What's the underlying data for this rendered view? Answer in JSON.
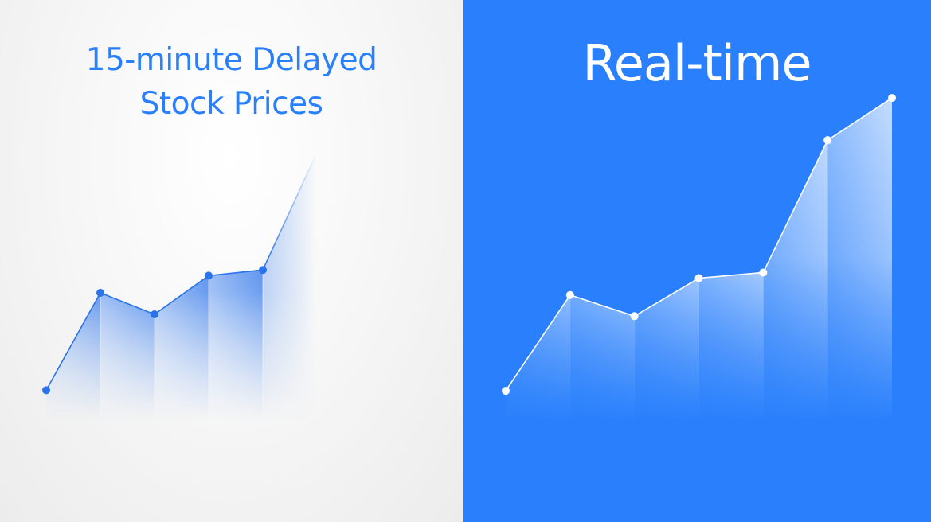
{
  "colors": {
    "accent": "#2a80fc",
    "left_background": "#f4f4f4",
    "left_title": "#2a80fc",
    "right_title": "#ffffff",
    "left_line": "#2a73ea",
    "right_line": "#ffffff"
  },
  "left": {
    "title_line1": "15-minute Delayed",
    "title_line2": "Stock Prices"
  },
  "right": {
    "title": "Real-time"
  },
  "chart_data": [
    {
      "type": "area",
      "panel": "left",
      "x": [
        1,
        2,
        3,
        4,
        5,
        6
      ],
      "values": [
        1.1,
        4.5,
        3.75,
        5.1,
        5.3,
        9.4
      ],
      "markers": [
        1,
        2,
        3,
        4,
        5
      ],
      "last_segment_faded": true,
      "ylim": [
        0,
        10
      ],
      "grid": false
    },
    {
      "type": "area",
      "panel": "right",
      "x": [
        1,
        2,
        3,
        4,
        5,
        6,
        7
      ],
      "values": [
        1.1,
        4.5,
        3.75,
        5.1,
        5.3,
        10.0,
        11.5
      ],
      "markers": [
        1,
        2,
        3,
        4,
        5,
        6,
        7
      ],
      "last_segment_faded": false,
      "ylim": [
        0,
        13
      ],
      "grid": false
    }
  ]
}
